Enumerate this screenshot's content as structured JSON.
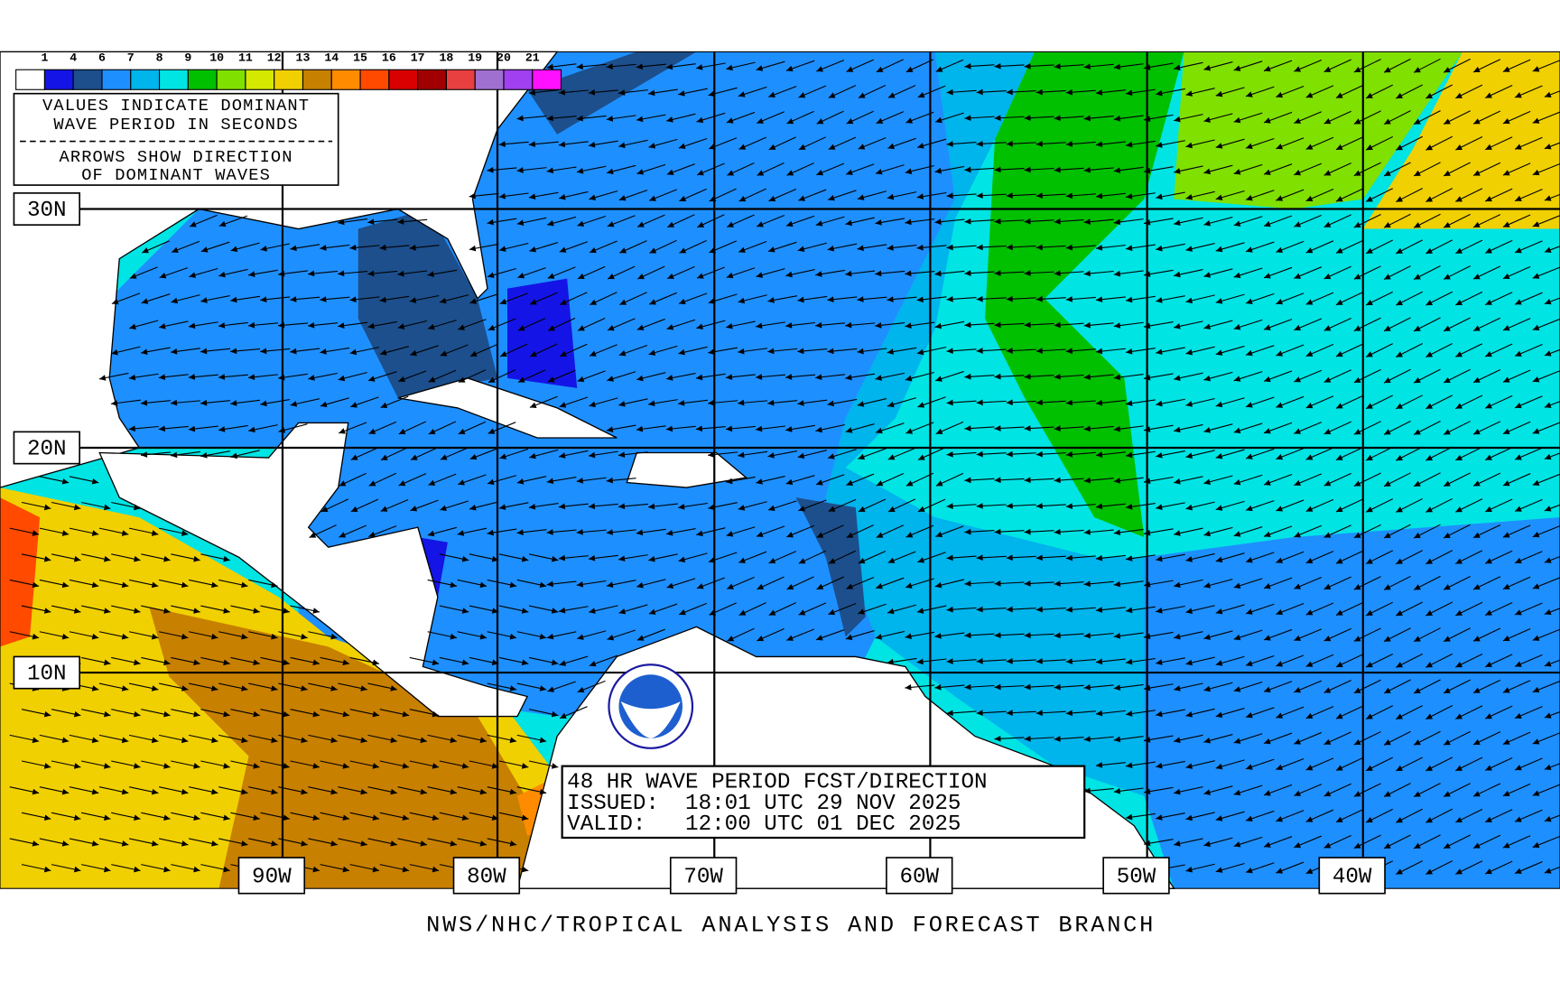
{
  "legend": {
    "scale_labels": [
      "1",
      "4",
      "6",
      "7",
      "8",
      "9",
      "10",
      "11",
      "12",
      "13",
      "14",
      "15",
      "16",
      "17",
      "18",
      "19",
      "20",
      "21"
    ],
    "colors": [
      "#ffffff",
      "#1414e6",
      "#1c4f8c",
      "#1e8fff",
      "#00b4ec",
      "#00e4e4",
      "#00c000",
      "#80e000",
      "#d4e800",
      "#f0d000",
      "#c88000",
      "#ff8c00",
      "#ff4a00",
      "#d80000",
      "#a00000",
      "#e84040",
      "#a070d0",
      "#a040f0",
      "#ff10ff"
    ],
    "note": [
      "VALUES INDICATE DOMINANT",
      "WAVE PERIOD IN SECONDS",
      "ARROWS SHOW DIRECTION",
      "OF DOMINANT WAVES"
    ]
  },
  "grid": {
    "latitudes": [
      "30N",
      "20N",
      "10N"
    ],
    "longitudes": [
      "90W",
      "80W",
      "70W",
      "60W",
      "50W",
      "40W"
    ]
  },
  "forecast": {
    "lines": [
      "48 HR WAVE PERIOD FCST/DIRECTION",
      "ISSUED:  18:01 UTC 29 NOV 2025",
      "VALID:   12:00 UTC 01 DEC 2025"
    ]
  },
  "footer": "NWS/NHC/TROPICAL ANALYSIS AND FORECAST BRANCH"
}
